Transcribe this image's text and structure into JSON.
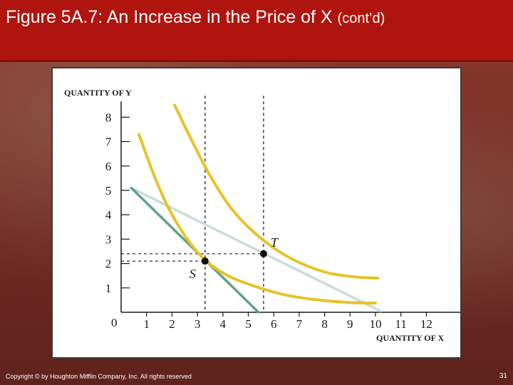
{
  "slide": {
    "title": "Figure 5A.7: An Increase in the Price of X",
    "title_suffix": "(cont’d)",
    "footer": "Copyright © by Houghton Mifflin Company, Inc. All rights reserved",
    "page_number": "31"
  },
  "colors": {
    "title_bar": "#b0140e",
    "indifference_curve": "#e8c227",
    "budget_line_new": "#5fa382",
    "budget_line_compensated": "#c8ddd6",
    "axis": "#1a1a1a"
  },
  "chart_data": {
    "type": "line",
    "xlabel": "QUANTITY OF X",
    "ylabel": "QUANTITY OF Y",
    "xlim": [
      0,
      13
    ],
    "ylim": [
      0,
      9
    ],
    "x_ticks": [
      "1",
      "2",
      "3",
      "4",
      "5",
      "6",
      "7",
      "8",
      "9",
      "10",
      "11",
      "12"
    ],
    "y_ticks": [
      "1",
      "2",
      "3",
      "4",
      "5",
      "6",
      "7",
      "8"
    ],
    "origin_label": "0",
    "grid": false,
    "series": [
      {
        "role": "indifference-curve-higher",
        "color": "#e8c227",
        "points": [
          [
            2.1,
            8.5
          ],
          [
            2.8,
            7.0
          ],
          [
            3.5,
            5.6
          ],
          [
            4.3,
            4.3
          ],
          [
            5.2,
            3.3
          ],
          [
            6.2,
            2.5
          ],
          [
            7.2,
            1.95
          ],
          [
            8.2,
            1.6
          ],
          [
            9.2,
            1.45
          ],
          [
            10.1,
            1.4
          ]
        ]
      },
      {
        "role": "indifference-curve-lower",
        "color": "#e8c227",
        "points": [
          [
            0.7,
            7.3
          ],
          [
            1.3,
            5.6
          ],
          [
            1.9,
            4.2
          ],
          [
            2.6,
            3.0
          ],
          [
            3.3,
            2.15
          ],
          [
            4.2,
            1.5
          ],
          [
            5.3,
            1.05
          ],
          [
            6.5,
            0.7
          ],
          [
            7.8,
            0.5
          ],
          [
            9.0,
            0.4
          ],
          [
            10.0,
            0.38
          ]
        ]
      },
      {
        "role": "budget-line-new",
        "color": "#5fa382",
        "points": [
          [
            0.4,
            5.1
          ],
          [
            5.4,
            0.0
          ]
        ]
      },
      {
        "role": "budget-line-compensated",
        "color": "#c8ddd6",
        "points": [
          [
            0.4,
            5.1
          ],
          [
            10.2,
            0.05
          ]
        ]
      }
    ],
    "guides": [
      {
        "x": 3.3,
        "y": 2.1
      },
      {
        "x": 5.6,
        "y": 2.4
      }
    ],
    "points": [
      {
        "label": "S",
        "x": 3.3,
        "y": 2.1
      },
      {
        "label": "T",
        "x": 5.6,
        "y": 2.4
      }
    ]
  }
}
